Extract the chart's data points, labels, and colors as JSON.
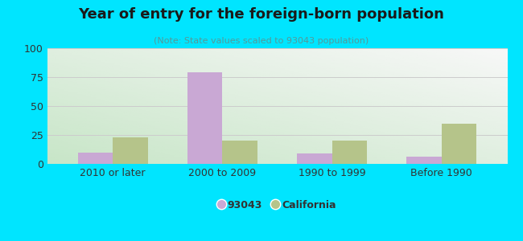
{
  "title": "Year of entry for the foreign-born population",
  "subtitle": "(Note: State values scaled to 93043 population)",
  "categories": [
    "2010 or later",
    "2000 to 2009",
    "1990 to 1999",
    "Before 1990"
  ],
  "values_93043": [
    10,
    79,
    9,
    6
  ],
  "values_california": [
    23,
    20,
    20,
    35
  ],
  "bar_color_93043": "#c9a8d4",
  "bar_color_california": "#b5c48a",
  "background_outer": "#00e5ff",
  "background_plot_gradient_bottom_left": "#c8e6c4",
  "background_plot_gradient_top_right": "#f8f8f8",
  "ylim": [
    0,
    100
  ],
  "yticks": [
    0,
    25,
    50,
    75,
    100
  ],
  "title_fontsize": 13,
  "subtitle_fontsize": 8,
  "tick_fontsize": 9,
  "legend_label_93043": "93043",
  "legend_label_california": "California",
  "bar_width": 0.32,
  "grid_color": "#cccccc",
  "text_color": "#333333",
  "subtitle_color": "#559999"
}
